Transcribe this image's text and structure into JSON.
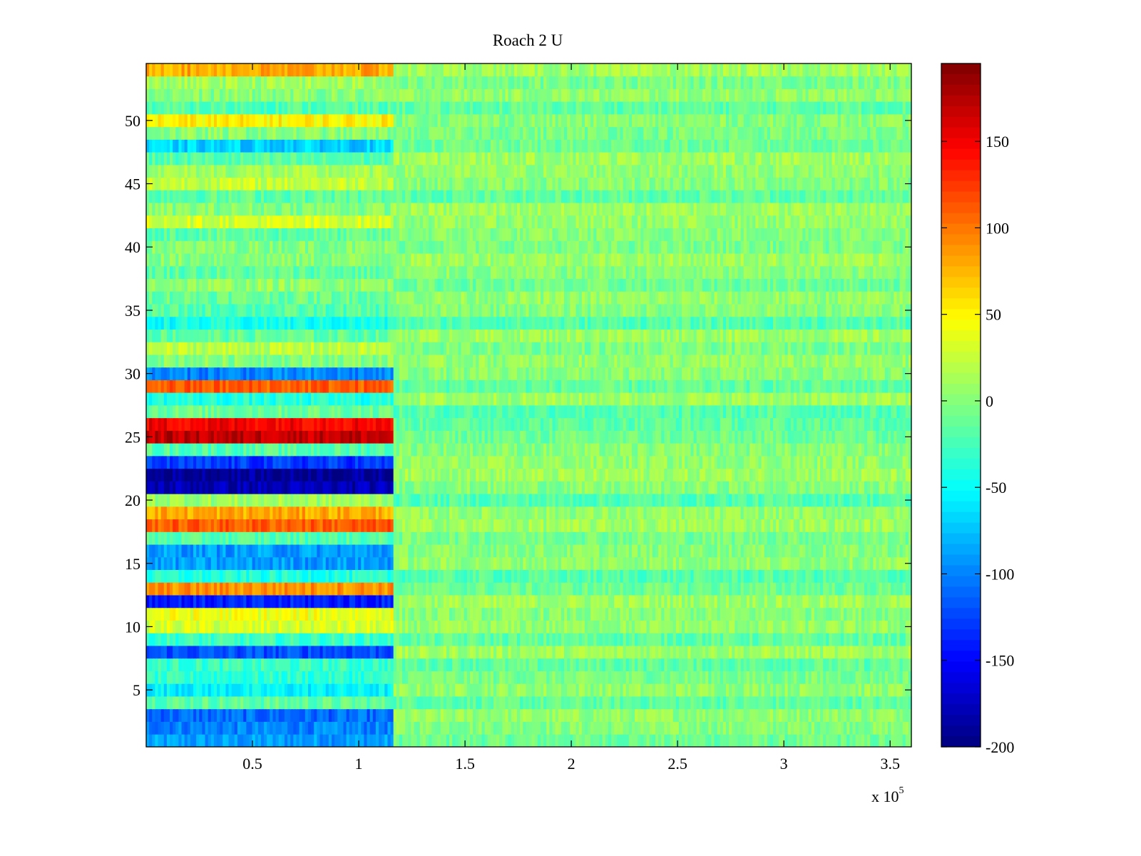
{
  "chart_data": {
    "type": "heatmap",
    "title": "Roach 2 U",
    "xlabel": "",
    "ylabel": "",
    "x_multiplier_label": "x 10",
    "x_multiplier_exponent": "5",
    "xlim": [
      0,
      3.6
    ],
    "ylim": [
      0.5,
      54.5
    ],
    "x_ticks": [
      0.5,
      1,
      1.5,
      2,
      2.5,
      3,
      3.5
    ],
    "x_tick_labels": [
      "0.5",
      "1",
      "1.5",
      "2",
      "2.5",
      "3",
      "3.5"
    ],
    "y_ticks": [
      5,
      10,
      15,
      20,
      25,
      30,
      35,
      40,
      45,
      50
    ],
    "y_tick_labels": [
      "5",
      "10",
      "15",
      "20",
      "25",
      "30",
      "35",
      "40",
      "45",
      "50"
    ],
    "rows": 54,
    "split_x": 1.17,
    "row_mean_before_split": [
      -90,
      -100,
      -110,
      -15,
      -55,
      -35,
      -30,
      -120,
      -30,
      30,
      40,
      -140,
      90,
      -40,
      -90,
      -90,
      -20,
      110,
      80,
      10,
      -180,
      -190,
      -130,
      -20,
      170,
      150,
      -10,
      -40,
      110,
      -100,
      0,
      20,
      -15,
      -45,
      -20,
      -10,
      5,
      -15,
      0,
      0,
      -15,
      30,
      0,
      -15,
      25,
      10,
      -20,
      -70,
      0,
      50,
      -20,
      0,
      10,
      80
    ],
    "row_mean_after_split": [
      -10,
      0,
      5,
      -15,
      5,
      -5,
      -15,
      10,
      -15,
      5,
      0,
      10,
      -10,
      -20,
      5,
      0,
      -5,
      10,
      5,
      -20,
      0,
      10,
      5,
      0,
      -10,
      -15,
      -20,
      10,
      -15,
      0,
      5,
      -5,
      10,
      -20,
      0,
      5,
      -10,
      0,
      10,
      -5,
      0,
      5,
      10,
      -15,
      0,
      5,
      10,
      -10,
      -5,
      0,
      -15,
      5,
      -5,
      10
    ],
    "colorbar": {
      "colormap": "jet",
      "min": -200,
      "max": 195,
      "ticks": [
        150,
        100,
        50,
        0,
        -50,
        -100,
        -150,
        -200
      ],
      "tick_labels": [
        "150",
        "100",
        "50",
        "0",
        "-50",
        "-100",
        "-150",
        "-200"
      ]
    },
    "grid": false,
    "legend": "none"
  }
}
